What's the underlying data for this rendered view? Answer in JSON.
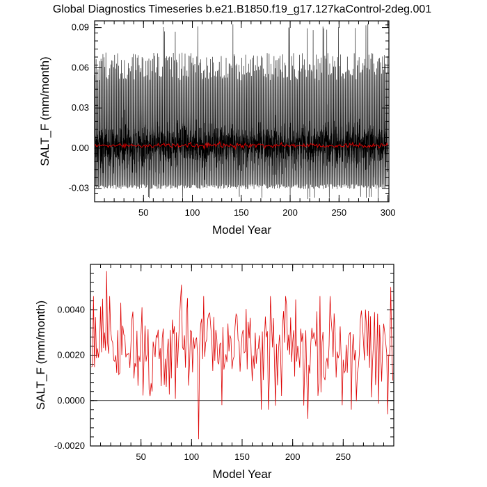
{
  "chart_data": [
    {
      "type": "line",
      "title": "Global Diagnostics Timeseries b.e21.B1850.f19_g17.127kaControl-2deg.001",
      "xlabel": "Model Year",
      "ylabel": "SALT_F (mm/month)",
      "xlim": [
        0,
        301
      ],
      "ylim": [
        -0.04,
        0.095
      ],
      "xticks": [
        50,
        100,
        150,
        200,
        250,
        300
      ],
      "xtick_labels": [
        "50",
        "100",
        "150",
        "200",
        "250",
        "300"
      ],
      "yticks": [
        -0.03,
        0.0,
        0.03,
        0.06,
        0.09
      ],
      "ytick_labels": [
        "-0.03",
        "0.00",
        "0.03",
        "0.06",
        "0.09"
      ],
      "series": [
        {
          "color": "#000000",
          "sampling": "monthly",
          "x_range": [
            0,
            300
          ],
          "typical_annual_max": 0.065,
          "peak_annual_max": 0.093,
          "typical_annual_min": -0.03,
          "peak_annual_min": -0.038
        },
        {
          "color": "#dd0000",
          "sampling": "annual mean",
          "x_range": [
            0,
            300
          ],
          "mean": 0.002
        }
      ]
    },
    {
      "type": "line",
      "title": "",
      "xlabel": "Model Year",
      "ylabel": "SALT_F (mm/month)",
      "xlim": [
        0,
        300
      ],
      "ylim": [
        -0.002,
        0.006
      ],
      "xticks": [
        50,
        100,
        150,
        200,
        250
      ],
      "xtick_labels": [
        "50",
        "100",
        "150",
        "200",
        "250"
      ],
      "yticks": [
        -0.002,
        0.0,
        0.002,
        0.004
      ],
      "ytick_labels": [
        "-0.0020",
        "0.0000",
        "0.0020",
        "0.0040"
      ],
      "reference_line": 0.0,
      "series": [
        {
          "color": "#dd0000",
          "sampling": "annual mean",
          "x_range": [
            1,
            299
          ],
          "mean": 0.0022,
          "std": 0.00115,
          "extremes": [
            {
              "x": 16,
              "y": 0.0057
            },
            {
              "x": 90,
              "y": 0.0051
            },
            {
              "x": 107,
              "y": -0.0017
            },
            {
              "x": 215,
              "y": -0.0008
            },
            {
              "x": 294,
              "y": -0.0006
            },
            {
              "x": 297,
              "y": 0.005
            }
          ]
        }
      ]
    }
  ]
}
